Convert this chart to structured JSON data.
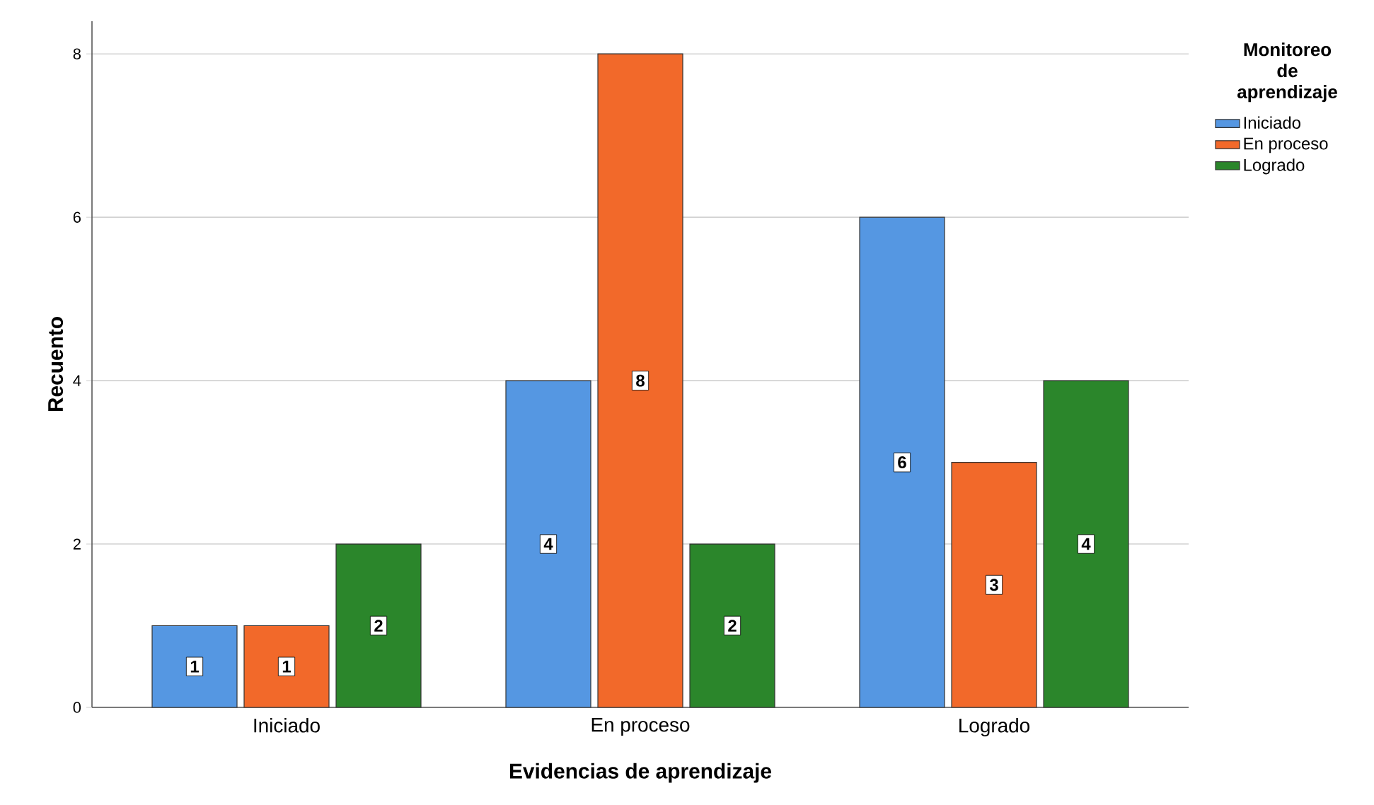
{
  "chart_data": {
    "type": "bar",
    "xlabel": "Evidencias de aprendizaje",
    "ylabel": "Recuento",
    "legend_title": "Monitoreo de aprendizaje",
    "categories": [
      "Iniciado",
      "En proceso",
      "Logrado"
    ],
    "series": [
      {
        "name": "Iniciado",
        "color": "#5597e2",
        "values": [
          1,
          4,
          6
        ]
      },
      {
        "name": "En proceso",
        "color": "#f2692a",
        "values": [
          1,
          8,
          3
        ]
      },
      {
        "name": "Logrado",
        "color": "#2b862b",
        "values": [
          2,
          2,
          4
        ]
      }
    ],
    "ylim": [
      0,
      8.4
    ],
    "yticks": [
      0,
      2,
      4,
      6,
      8
    ],
    "grid": "y",
    "legend": "top right",
    "data_labels": true
  }
}
